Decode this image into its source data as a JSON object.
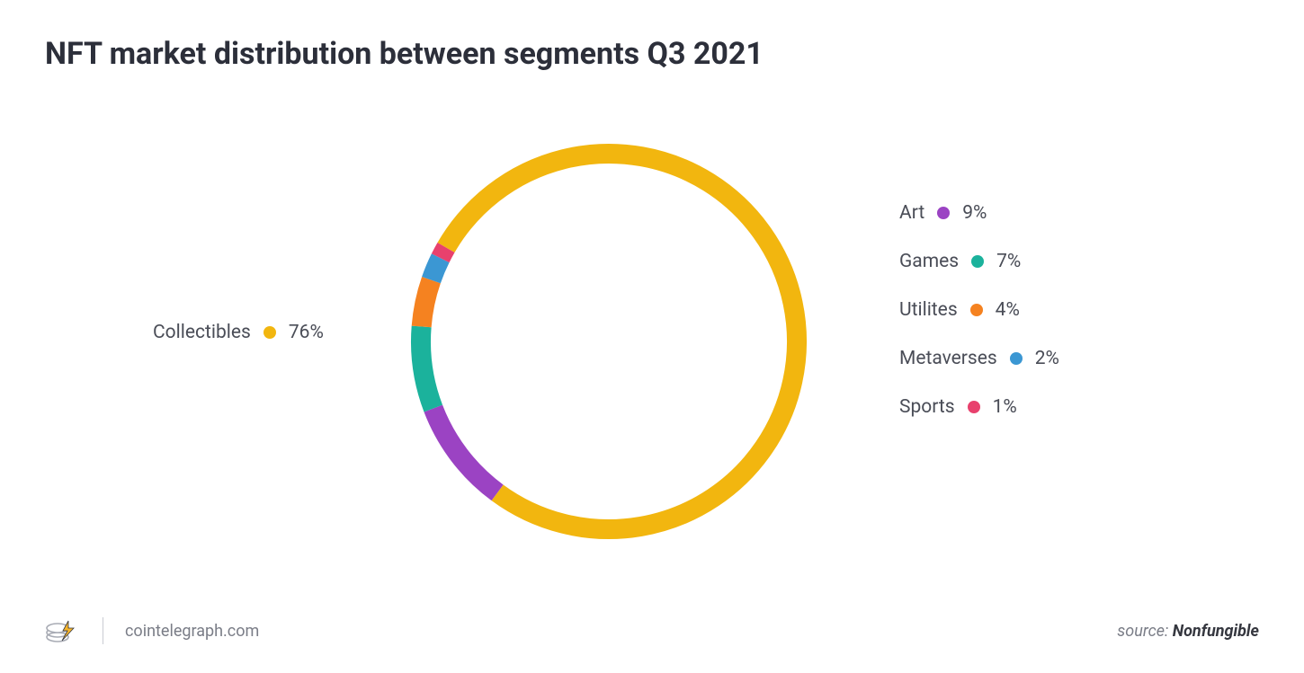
{
  "title": "NFT market distribution between segments Q3 2021",
  "chart": {
    "type": "donut",
    "background_color": "#ffffff",
    "ring_thickness": 22,
    "outer_radius": 220,
    "start_angle_deg": -150,
    "segments": [
      {
        "label": "Collectibles",
        "value": 76,
        "color": "#f2b60f",
        "display": "76%"
      },
      {
        "label": "Art",
        "value": 9,
        "color": "#9b43c3",
        "display": "9%"
      },
      {
        "label": "Games",
        "value": 7,
        "color": "#1bb29c",
        "display": "7%"
      },
      {
        "label": "Utilites",
        "value": 4,
        "color": "#f58220",
        "display": "4%"
      },
      {
        "label": "Metaverses",
        "value": 2,
        "color": "#3b97d3",
        "display": "2%"
      },
      {
        "label": "Sports",
        "value": 1,
        "color": "#e8416d",
        "display": "1%"
      }
    ],
    "legend_left_index": 0,
    "legend_right_indices": [
      1,
      2,
      3,
      4,
      5
    ],
    "legend_fontsize": 21,
    "legend_color": "#4a4d57",
    "dot_size": 14
  },
  "footer": {
    "site": "cointelegraph.com",
    "source_label": "source: ",
    "source_name": "Nonfungible"
  }
}
